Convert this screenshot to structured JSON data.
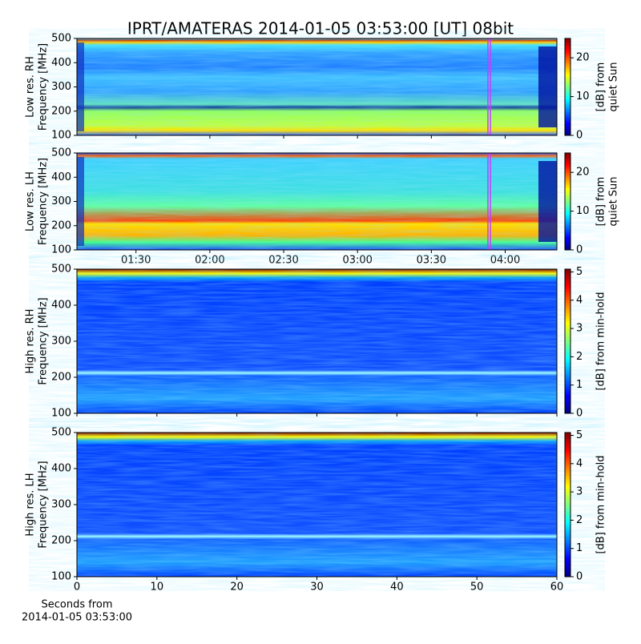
{
  "title": "IPRT/AMATERAS 2014-01-05 03:53:00 [UT]   08bit",
  "chart_data": [
    {
      "type": "heatmap",
      "ylabel": [
        "Low res. RH",
        "Frequency [MHz]"
      ],
      "ylim": [
        100,
        500
      ],
      "yticks": [
        100,
        200,
        300,
        400,
        500
      ],
      "xlim": [
        66,
        261
      ],
      "markers": [
        233,
        234
      ],
      "marker_color": "#c040ff",
      "colorbar_label": [
        "[dB] from",
        "quiet Sun"
      ],
      "clim": [
        0,
        25
      ],
      "cticks": [
        0,
        10,
        20
      ]
    },
    {
      "type": "heatmap",
      "ylabel": [
        "Low res. LH",
        "Frequency [MHz]"
      ],
      "ylim": [
        100,
        500
      ],
      "yticks": [
        100,
        200,
        300,
        400,
        500
      ],
      "xlim": [
        66,
        261
      ],
      "xticks": [
        {
          "value": 90,
          "label": "01:30"
        },
        {
          "value": 120,
          "label": "02:00"
        },
        {
          "value": 150,
          "label": "02:30"
        },
        {
          "value": 180,
          "label": "03:00"
        },
        {
          "value": 210,
          "label": "03:30"
        },
        {
          "value": 240,
          "label": "04:00"
        }
      ],
      "markers": [
        233,
        234
      ],
      "marker_color": "#c040ff",
      "colorbar_label": [
        "[dB] from",
        "quiet Sun"
      ],
      "clim": [
        0,
        25
      ],
      "cticks": [
        0,
        10,
        20
      ]
    },
    {
      "type": "heatmap",
      "ylabel": [
        "High res. RH",
        "Frequency [MHz]"
      ],
      "ylim": [
        100,
        500
      ],
      "yticks": [
        100,
        200,
        300,
        400,
        500
      ],
      "xlim": [
        0,
        60
      ],
      "colorbar_label": [
        "[dB] from min-hold"
      ],
      "clim": [
        0,
        5.1
      ],
      "cticks": [
        0,
        1,
        2,
        3,
        4,
        5
      ]
    },
    {
      "type": "heatmap",
      "ylabel": [
        "High res. LH",
        "Frequency [MHz]"
      ],
      "ylim": [
        100,
        500
      ],
      "yticks": [
        100,
        200,
        300,
        400,
        500
      ],
      "xlim": [
        0,
        60
      ],
      "xticks": [
        0,
        10,
        20,
        30,
        40,
        50,
        60
      ],
      "xlabel": [
        "Seconds from",
        "2014-01-05 03:53:00"
      ],
      "colorbar_label": [
        "[dB] from min-hold"
      ],
      "clim": [
        0,
        5.1
      ],
      "cticks": [
        0,
        1,
        2,
        3,
        4,
        5
      ]
    }
  ]
}
